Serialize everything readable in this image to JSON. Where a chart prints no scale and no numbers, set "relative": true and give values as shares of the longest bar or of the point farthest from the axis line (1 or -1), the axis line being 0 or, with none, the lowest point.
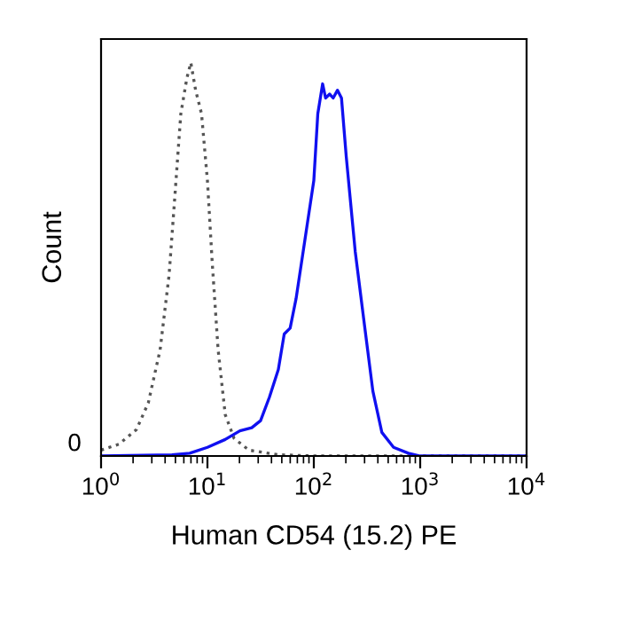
{
  "chart_data": {
    "type": "line",
    "relative": true,
    "log": "x",
    "xlabel": "Human CD54 (15.2) PE",
    "ylabel": "Count",
    "xlim": [
      1,
      10000
    ],
    "xticks": [
      {
        "value": 1,
        "label": "10$^{0}$"
      },
      {
        "value": 10,
        "label": "10$^{1}$"
      },
      {
        "value": 100,
        "label": "10$^{2}$"
      },
      {
        "value": 1000,
        "label": "10$^{3}$"
      },
      {
        "value": 10000,
        "label": "10$^{4}$"
      }
    ],
    "annotations": [
      "0"
    ],
    "grid": false,
    "legend": false,
    "series": [
      {
        "color": "#555555",
        "line_style": "dotted",
        "x": [
          1,
          1.47,
          2.15,
          2.78,
          3.59,
          4.36,
          4.94,
          5.62,
          6.4,
          6.98,
          7.74,
          8.8,
          10,
          11.1,
          12.6,
          14.7,
          17.8,
          24.5,
          46.4,
          114,
          10000
        ],
        "values": [
          0.015,
          0.03,
          0.067,
          0.135,
          0.27,
          0.46,
          0.66,
          0.87,
          0.96,
          1.0,
          0.93,
          0.87,
          0.7,
          0.49,
          0.27,
          0.105,
          0.045,
          0.015,
          0.003,
          0,
          0
        ]
      },
      {
        "color": "#1010f0",
        "line_style": "solid",
        "x": [
          1,
          4.64,
          6.81,
          10,
          14.7,
          20.2,
          26.1,
          31.6,
          38.3,
          46.4,
          52.7,
          59.9,
          68.1,
          82.5,
          100,
          109,
          121,
          129,
          141,
          152,
          167,
          182,
          202,
          245,
          297,
          359,
          436,
          562,
          774,
          1000,
          10000
        ],
        "values": [
          0,
          0.003,
          0.007,
          0.022,
          0.042,
          0.064,
          0.072,
          0.09,
          0.15,
          0.22,
          0.31,
          0.325,
          0.4,
          0.55,
          0.7,
          0.87,
          0.946,
          0.91,
          0.92,
          0.91,
          0.93,
          0.91,
          0.76,
          0.52,
          0.34,
          0.165,
          0.06,
          0.022,
          0.007,
          0,
          0
        ]
      }
    ]
  }
}
